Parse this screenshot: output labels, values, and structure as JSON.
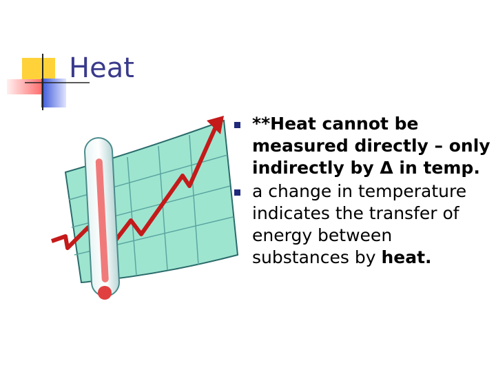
{
  "slide": {
    "title": "Heat",
    "bullets": [
      {
        "text": "**Heat cannot be measured directly – only indirectly by Δ in temp."
      },
      {
        "text": "a change in temperature indicates the transfer of energy between substances by",
        "emphasis": "heat."
      }
    ]
  }
}
